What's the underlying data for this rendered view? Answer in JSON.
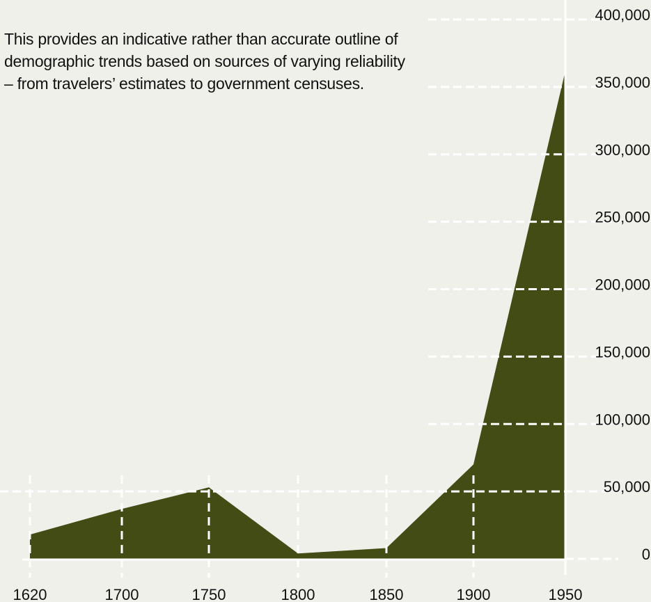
{
  "note": "This provides an indicative rather than accurate outline of demographic trends based on sources of varying reliability – from travelers’ estimates to government censuses.",
  "colors": {
    "background": "#f0f0eb",
    "area_fill": "#434c14",
    "grid": "#ffffff",
    "text": "#111111"
  },
  "chart_data": {
    "type": "area",
    "title": "",
    "xlabel": "",
    "ylabel": "",
    "categories": [
      "1620",
      "1700",
      "1750",
      "1800",
      "1850",
      "1900",
      "1950"
    ],
    "values": [
      18000,
      37000,
      53000,
      4000,
      8000,
      70000,
      362000
    ],
    "ylim": [
      0,
      400000
    ],
    "yticks": [
      0,
      50000,
      100000,
      150000,
      200000,
      250000,
      300000,
      350000,
      400000
    ],
    "ytick_labels": [
      "0",
      "50,000",
      "100,000",
      "150,000",
      "200,000",
      "250,000",
      "300,000",
      "350,000",
      "400,000"
    ],
    "y_axis_side": "right",
    "grid": true,
    "legend": "none"
  }
}
